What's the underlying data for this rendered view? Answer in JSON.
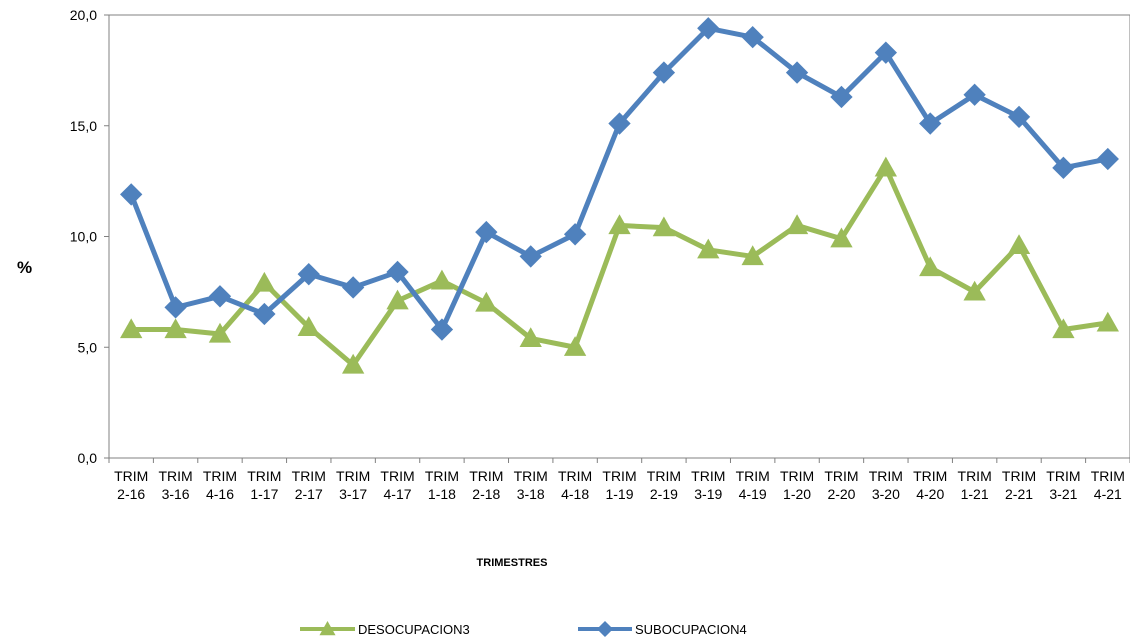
{
  "chart_data": {
    "type": "line",
    "title": "",
    "xlabel": "TRIMESTRES",
    "ylabel": "%",
    "ylim": [
      0,
      20
    ],
    "y_ticks": [
      "0,0",
      "5,0",
      "10,0",
      "15,0",
      "20,0"
    ],
    "y_tick_values": [
      0,
      5,
      10,
      15,
      20
    ],
    "grid": false,
    "legend_position": "bottom",
    "categories": [
      {
        "line1": "TRIM",
        "line2": "2-16"
      },
      {
        "line1": "TRIM",
        "line2": "3-16"
      },
      {
        "line1": "TRIM",
        "line2": "4-16"
      },
      {
        "line1": "TRIM",
        "line2": "1-17"
      },
      {
        "line1": "TRIM",
        "line2": "2-17"
      },
      {
        "line1": "TRIM",
        "line2": "3-17"
      },
      {
        "line1": "TRIM",
        "line2": "4-17"
      },
      {
        "line1": "TRIM",
        "line2": "1-18"
      },
      {
        "line1": "TRIM",
        "line2": "2-18"
      },
      {
        "line1": "TRIM",
        "line2": "3-18"
      },
      {
        "line1": "TRIM",
        "line2": "4-18"
      },
      {
        "line1": "TRIM",
        "line2": "1-19"
      },
      {
        "line1": "TRIM",
        "line2": "2-19"
      },
      {
        "line1": "TRIM",
        "line2": "3-19"
      },
      {
        "line1": "TRIM",
        "line2": "4-19"
      },
      {
        "line1": "TRIM",
        "line2": "1-20"
      },
      {
        "line1": "TRIM",
        "line2": "2-20"
      },
      {
        "line1": "TRIM",
        "line2": "3-20"
      },
      {
        "line1": "TRIM",
        "line2": "4-20"
      },
      {
        "line1": "TRIM",
        "line2": "1-21"
      },
      {
        "line1": "TRIM",
        "line2": "2-21"
      },
      {
        "line1": "TRIM",
        "line2": "3-21"
      },
      {
        "line1": "TRIM",
        "line2": "4-21"
      }
    ],
    "series": [
      {
        "name": "DESOCUPACION3",
        "color": "#9bbb59",
        "marker": "triangle",
        "values": [
          5.8,
          5.8,
          5.6,
          7.9,
          5.9,
          4.2,
          7.1,
          8.0,
          7.0,
          5.4,
          5.0,
          10.5,
          10.4,
          9.4,
          9.1,
          10.5,
          9.9,
          13.1,
          8.6,
          7.5,
          9.6,
          5.8,
          6.1
        ]
      },
      {
        "name": "SUBOCUPACION4",
        "color": "#4f81bd",
        "marker": "diamond",
        "values": [
          11.9,
          6.8,
          7.3,
          6.5,
          8.3,
          7.7,
          8.4,
          5.8,
          10.2,
          9.1,
          10.1,
          15.1,
          17.4,
          19.4,
          19.0,
          17.4,
          16.3,
          18.3,
          15.1,
          16.4,
          15.4,
          13.1,
          13.5
        ]
      }
    ]
  }
}
